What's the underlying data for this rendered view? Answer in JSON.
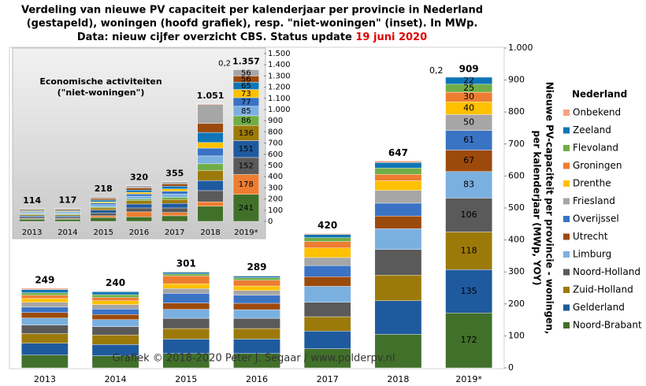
{
  "chart_data": [
    {
      "type": "bar",
      "stacked": true,
      "title": [
        "Verdeling van nieuwe PV capaciteit per kalenderjaar per provincie in Nederland",
        "(gestapeld), woningen (hoofd grafiek), resp. \"niet-woningen\" (inset). In MWp.",
        "Data: nieuw cijfer overzicht CBS. Status update "
      ],
      "title_date": "19 juni 2020",
      "y_label": [
        "Nieuwe PV-capaciteit per provincie - woningen,",
        "per kalenderjaar (MWp, YOY)"
      ],
      "legend_title": "Nederland",
      "watermark": "Grafiek © 2018-2020 Peter J. Segaar / www.polderpv.nl",
      "categories": [
        "2013",
        "2014",
        "2015",
        "2016",
        "2017",
        "2018",
        "2019*"
      ],
      "totals": [
        249,
        240,
        301,
        289,
        420,
        647,
        909
      ],
      "ylim": [
        0,
        1000
      ],
      "yticks": [
        0,
        100,
        200,
        300,
        400,
        500,
        600,
        700,
        800,
        900,
        {
          "value": 1000,
          "label": "1.000"
        }
      ],
      "series": [
        {
          "name": "Noord-Brabant",
          "color": "#41702a",
          "values": [
            40,
            38,
            45,
            45,
            60,
            105,
            172
          ],
          "value_labels": [
            null,
            null,
            null,
            null,
            null,
            null,
            "172"
          ]
        },
        {
          "name": "Gelderland",
          "color": "#1f5a9e",
          "values": [
            37,
            35,
            45,
            45,
            55,
            105,
            135
          ],
          "value_labels": [
            null,
            null,
            null,
            null,
            null,
            null,
            "135"
          ]
        },
        {
          "name": "Zuid-Holland",
          "color": "#9c7a0a",
          "values": [
            30,
            30,
            33,
            33,
            45,
            80,
            118
          ],
          "value_labels": [
            null,
            null,
            null,
            null,
            null,
            null,
            "118"
          ]
        },
        {
          "name": "Noord-Holland",
          "color": "#5a5a5a",
          "values": [
            27,
            26,
            32,
            32,
            45,
            80,
            106
          ],
          "value_labels": [
            null,
            null,
            null,
            null,
            null,
            null,
            "106"
          ]
        },
        {
          "name": "Limburg",
          "color": "#7ab0e0",
          "values": [
            22,
            22,
            28,
            27,
            50,
            65,
            83
          ],
          "value_labels": [
            null,
            null,
            null,
            null,
            null,
            null,
            "83"
          ]
        },
        {
          "name": "Utrecht",
          "color": "#9c4a0c",
          "values": [
            17,
            16,
            20,
            20,
            30,
            40,
            67
          ],
          "value_labels": [
            null,
            null,
            null,
            null,
            null,
            null,
            "67"
          ]
        },
        {
          "name": "Overijssel",
          "color": "#3a73c4",
          "values": [
            17,
            17,
            30,
            25,
            35,
            40,
            61
          ],
          "value_labels": [
            null,
            null,
            null,
            null,
            null,
            null,
            "61"
          ]
        },
        {
          "name": "Friesland",
          "color": "#a6a6a6",
          "values": [
            15,
            14,
            15,
            15,
            25,
            40,
            50
          ],
          "value_labels": [
            null,
            null,
            null,
            null,
            null,
            null,
            "50"
          ]
        },
        {
          "name": "Drenthe",
          "color": "#ffc000",
          "values": [
            12,
            12,
            15,
            14,
            30,
            30,
            40
          ],
          "value_labels": [
            null,
            null,
            null,
            null,
            null,
            null,
            "40"
          ]
        },
        {
          "name": "Groningen",
          "color": "#ed7d31",
          "values": [
            10,
            10,
            25,
            18,
            20,
            20,
            30
          ],
          "value_labels": [
            null,
            null,
            null,
            null,
            null,
            null,
            "30"
          ]
        },
        {
          "name": "Flevoland",
          "color": "#70ad47",
          "values": [
            8,
            9,
            6,
            8,
            12,
            20,
            25
          ],
          "value_labels": [
            null,
            null,
            null,
            null,
            null,
            null,
            "25"
          ]
        },
        {
          "name": "Zeeland",
          "color": "#0e75b6",
          "values": [
            10,
            9,
            5,
            5,
            10,
            17,
            22
          ],
          "value_labels": [
            null,
            null,
            null,
            null,
            null,
            null,
            "22"
          ]
        },
        {
          "name": "Onbekend",
          "color": "#f4a582",
          "values": [
            4,
            2,
            2,
            2,
            3,
            5,
            0.2
          ],
          "value_labels": [
            null,
            null,
            null,
            null,
            null,
            null,
            "0,2"
          ]
        }
      ]
    },
    {
      "type": "bar",
      "stacked": true,
      "title": [
        "Economische activiteiten",
        "(\"niet-woningen\")"
      ],
      "categories": [
        "2013",
        "2014",
        "2015",
        "2016",
        "2017",
        "2018",
        "2019*"
      ],
      "totals": [
        114,
        117,
        218,
        320,
        355,
        {
          "value": 1051,
          "label": "1.051"
        },
        {
          "value": 1357,
          "label": "1.357"
        }
      ],
      "ylim": [
        0,
        1500
      ],
      "yticks": [
        0,
        100,
        200,
        300,
        400,
        500,
        600,
        700,
        800,
        900,
        {
          "value": 1000,
          "label": "1.000"
        },
        {
          "value": 1100,
          "label": "1.100"
        },
        {
          "value": 1200,
          "label": "1.200"
        },
        {
          "value": 1300,
          "label": "1.300"
        },
        {
          "value": 1400,
          "label": "1.400"
        },
        {
          "value": 1500,
          "label": "1.500"
        }
      ],
      "series": [
        {
          "name": "Noord-Brabant",
          "color": "#41702a",
          "values": [
            20,
            20,
            35,
            40,
            50,
            135,
            241
          ],
          "value_labels": [
            null,
            null,
            null,
            null,
            null,
            null,
            "241"
          ]
        },
        {
          "name": "Groningen",
          "color": "#ed7d31",
          "values": [
            5,
            5,
            15,
            45,
            30,
            40,
            178
          ],
          "value_labels": [
            null,
            null,
            null,
            null,
            null,
            null,
            "178"
          ]
        },
        {
          "name": "Noord-Holland",
          "color": "#5a5a5a",
          "values": [
            12,
            12,
            25,
            35,
            40,
            100,
            152
          ],
          "value_labels": [
            null,
            null,
            null,
            null,
            null,
            null,
            "152"
          ]
        },
        {
          "name": "Gelderland",
          "color": "#1f5a9e",
          "values": [
            12,
            12,
            25,
            35,
            40,
            90,
            151
          ],
          "value_labels": [
            null,
            null,
            null,
            null,
            null,
            null,
            "151"
          ]
        },
        {
          "name": "Zuid-Holland",
          "color": "#9c7a0a",
          "values": [
            10,
            10,
            20,
            30,
            35,
            90,
            136
          ],
          "value_labels": [
            null,
            null,
            null,
            null,
            null,
            null,
            "136"
          ]
        },
        {
          "name": "Flevoland",
          "color": "#70ad47",
          "values": [
            6,
            6,
            10,
            15,
            20,
            60,
            86
          ],
          "value_labels": [
            null,
            null,
            null,
            null,
            null,
            null,
            "86"
          ]
        },
        {
          "name": "Limburg",
          "color": "#7ab0e0",
          "values": [
            10,
            10,
            20,
            25,
            30,
            70,
            85
          ],
          "value_labels": [
            null,
            null,
            null,
            null,
            null,
            null,
            "85"
          ]
        },
        {
          "name": "Overijssel",
          "color": "#3a73c4",
          "values": [
            8,
            9,
            15,
            20,
            25,
            70,
            77
          ],
          "value_labels": [
            null,
            null,
            null,
            null,
            null,
            null,
            "77"
          ]
        },
        {
          "name": "Drenthe",
          "color": "#ffc000",
          "values": [
            6,
            6,
            10,
            15,
            20,
            50,
            73
          ],
          "value_labels": [
            null,
            null,
            null,
            null,
            null,
            null,
            "73"
          ]
        },
        {
          "name": "Zeeland",
          "color": "#0e75b6",
          "values": [
            8,
            8,
            15,
            20,
            25,
            90,
            65
          ],
          "value_labels": [
            null,
            null,
            null,
            null,
            null,
            null,
            "65"
          ]
        },
        {
          "name": "Utrecht",
          "color": "#9c4a0c",
          "values": [
            7,
            8,
            13,
            18,
            20,
            80,
            56
          ],
          "value_labels": [
            null,
            null,
            null,
            null,
            null,
            null,
            "56"
          ]
        },
        {
          "name": "Friesland",
          "color": "#a6a6a6",
          "values": [
            9,
            10,
            14,
            20,
            18,
            170,
            56
          ],
          "value_labels": [
            null,
            null,
            null,
            null,
            null,
            null,
            "56"
          ]
        },
        {
          "name": "Onbekend",
          "color": "#f4a582",
          "values": [
            1,
            1,
            1,
            2,
            2,
            6,
            0.2
          ],
          "value_labels": [
            null,
            null,
            null,
            null,
            null,
            null,
            "0,2"
          ]
        }
      ]
    }
  ]
}
